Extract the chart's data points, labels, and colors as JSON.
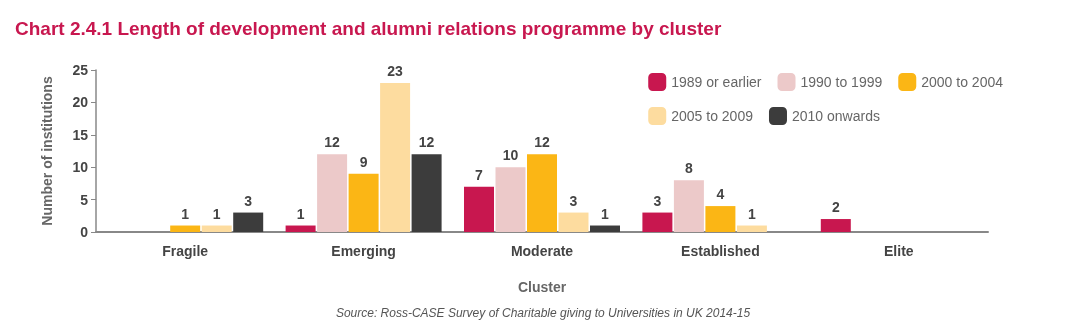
{
  "chart_data": {
    "type": "bar",
    "title": "Chart 2.4.1 Length of development and alumni relations programme by cluster",
    "xlabel": "Cluster",
    "ylabel": "Number of institutions",
    "categories": [
      "Fragile",
      "Emerging",
      "Moderate",
      "Established",
      "Elite"
    ],
    "series": [
      {
        "name": "1989 or earlier",
        "color": "#c8174f",
        "values": [
          null,
          1,
          7,
          3,
          2
        ]
      },
      {
        "name": "1990 to 1999",
        "color": "#ecc9c9",
        "values": [
          null,
          12,
          10,
          8,
          null
        ]
      },
      {
        "name": "2000 to 2004",
        "color": "#fbb615",
        "values": [
          1,
          9,
          12,
          4,
          null
        ]
      },
      {
        "name": "2005 to 2009",
        "color": "#fddc9f",
        "values": [
          1,
          23,
          3,
          1,
          null
        ]
      },
      {
        "name": "2010 onwards",
        "color": "#3c3c3c",
        "values": [
          3,
          12,
          1,
          null,
          null
        ]
      }
    ],
    "ylim": [
      0,
      25
    ],
    "yticks": [
      0,
      5,
      10,
      15,
      20,
      25
    ],
    "grid": false,
    "legend": "top right",
    "data_labels": true,
    "annotations": [
      "Source: Ross-CASE Survey of Charitable giving to Universities in UK 2014-15"
    ]
  }
}
